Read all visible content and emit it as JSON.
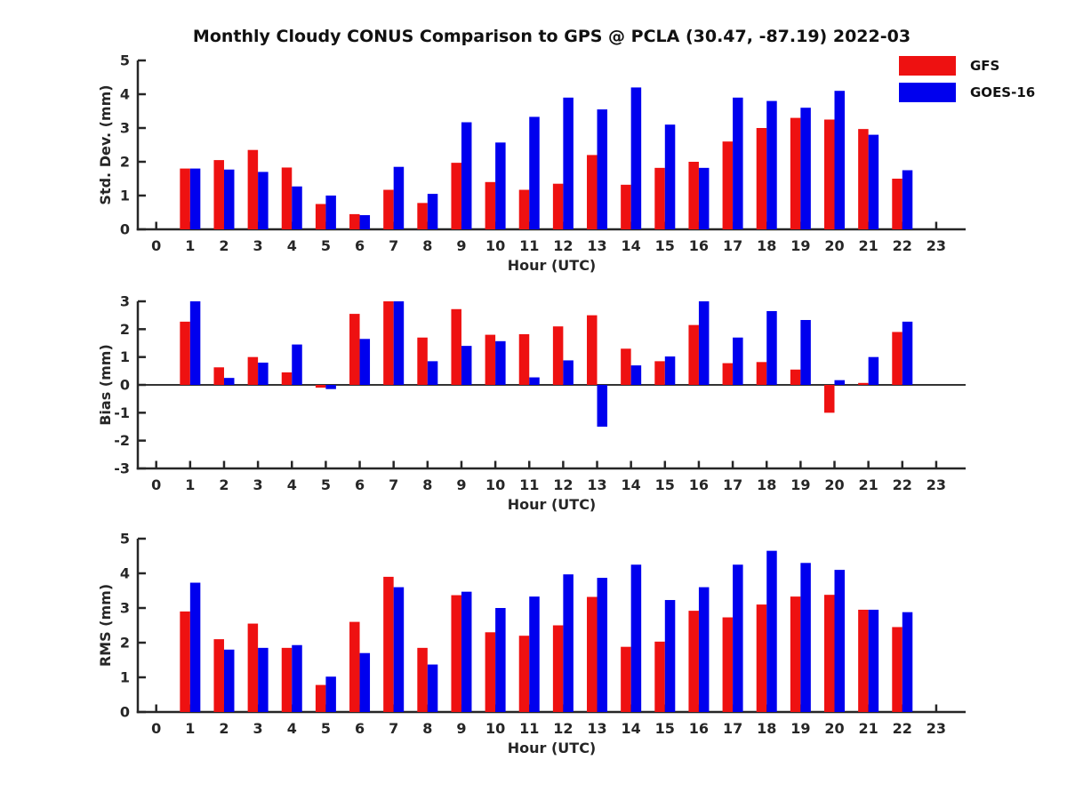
{
  "title": "Monthly Cloudy CONUS Comparison to GPS @ PCLA (30.47, -87.19) 2022-03",
  "legend": {
    "items": [
      {
        "label": "GFS",
        "color": "#ee1111"
      },
      {
        "label": "GOES-16",
        "color": "#0000ee"
      }
    ]
  },
  "colors": {
    "axis": "#262626",
    "gfs": "#ee1111",
    "goes16": "#0000ee"
  },
  "chart_data": [
    {
      "type": "bar",
      "title": "",
      "xlabel": "Hour (UTC)",
      "ylabel": "Std. Dev. (mm)",
      "ylim": [
        0,
        5
      ],
      "yticks": [
        0,
        1,
        2,
        3,
        4,
        5
      ],
      "categories": [
        0,
        1,
        2,
        3,
        4,
        5,
        6,
        7,
        8,
        9,
        10,
        11,
        12,
        13,
        14,
        15,
        16,
        17,
        18,
        19,
        20,
        21,
        22,
        23
      ],
      "series": [
        {
          "name": "GFS",
          "color": "#ee1111",
          "values": [
            null,
            1.8,
            2.05,
            2.35,
            1.83,
            0.75,
            0.45,
            1.17,
            0.78,
            1.97,
            1.4,
            1.17,
            1.35,
            2.2,
            1.32,
            1.82,
            2.0,
            2.6,
            3.0,
            3.3,
            3.25,
            2.97,
            1.5,
            null
          ]
        },
        {
          "name": "GOES-16",
          "color": "#0000ee",
          "values": [
            null,
            1.8,
            1.77,
            1.7,
            1.27,
            1.0,
            0.42,
            1.85,
            1.05,
            3.17,
            2.57,
            3.33,
            3.9,
            3.55,
            4.2,
            3.1,
            1.82,
            3.9,
            3.8,
            3.6,
            4.1,
            2.8,
            1.75,
            null
          ]
        }
      ],
      "legend_position": "upper right",
      "grid": false
    },
    {
      "type": "bar",
      "title": "",
      "xlabel": "Hour (UTC)",
      "ylabel": "Bias (mm)",
      "ylim": [
        -3,
        3
      ],
      "yticks": [
        -3,
        -2,
        -1,
        0,
        1,
        2,
        3
      ],
      "categories": [
        0,
        1,
        2,
        3,
        4,
        5,
        6,
        7,
        8,
        9,
        10,
        11,
        12,
        13,
        14,
        15,
        16,
        17,
        18,
        19,
        20,
        21,
        22,
        23
      ],
      "series": [
        {
          "name": "GFS",
          "color": "#ee1111",
          "values": [
            null,
            2.27,
            0.63,
            1.0,
            0.45,
            -0.1,
            2.55,
            3.0,
            1.7,
            2.72,
            1.8,
            1.82,
            2.1,
            2.5,
            1.3,
            0.85,
            2.15,
            0.78,
            0.82,
            0.55,
            -1.0,
            0.07,
            1.9,
            null
          ]
        },
        {
          "name": "GOES-16",
          "color": "#0000ee",
          "values": [
            null,
            3.0,
            0.25,
            0.8,
            1.45,
            -0.15,
            1.65,
            3.0,
            0.85,
            1.4,
            1.57,
            0.27,
            0.88,
            -1.5,
            0.7,
            1.02,
            3.0,
            1.7,
            2.65,
            2.33,
            0.17,
            1.0,
            2.27,
            null
          ]
        }
      ],
      "legend_position": "none",
      "grid": false
    },
    {
      "type": "bar",
      "title": "",
      "xlabel": "Hour (UTC)",
      "ylabel": "RMS (mm)",
      "ylim": [
        0,
        5
      ],
      "yticks": [
        0,
        1,
        2,
        3,
        4,
        5
      ],
      "categories": [
        0,
        1,
        2,
        3,
        4,
        5,
        6,
        7,
        8,
        9,
        10,
        11,
        12,
        13,
        14,
        15,
        16,
        17,
        18,
        19,
        20,
        21,
        22,
        23
      ],
      "series": [
        {
          "name": "GFS",
          "color": "#ee1111",
          "values": [
            null,
            2.9,
            2.1,
            2.55,
            1.85,
            0.78,
            2.6,
            3.9,
            1.85,
            3.37,
            2.3,
            2.2,
            2.5,
            3.32,
            1.88,
            2.03,
            2.92,
            2.73,
            3.1,
            3.33,
            3.38,
            2.95,
            2.45,
            null
          ]
        },
        {
          "name": "GOES-16",
          "color": "#0000ee",
          "values": [
            null,
            3.73,
            1.8,
            1.85,
            1.93,
            1.02,
            1.7,
            3.6,
            1.37,
            3.47,
            3.0,
            3.33,
            3.97,
            3.87,
            4.25,
            3.23,
            3.6,
            4.25,
            4.65,
            4.3,
            4.1,
            2.95,
            2.88,
            null
          ]
        }
      ],
      "legend_position": "none",
      "grid": false
    }
  ]
}
